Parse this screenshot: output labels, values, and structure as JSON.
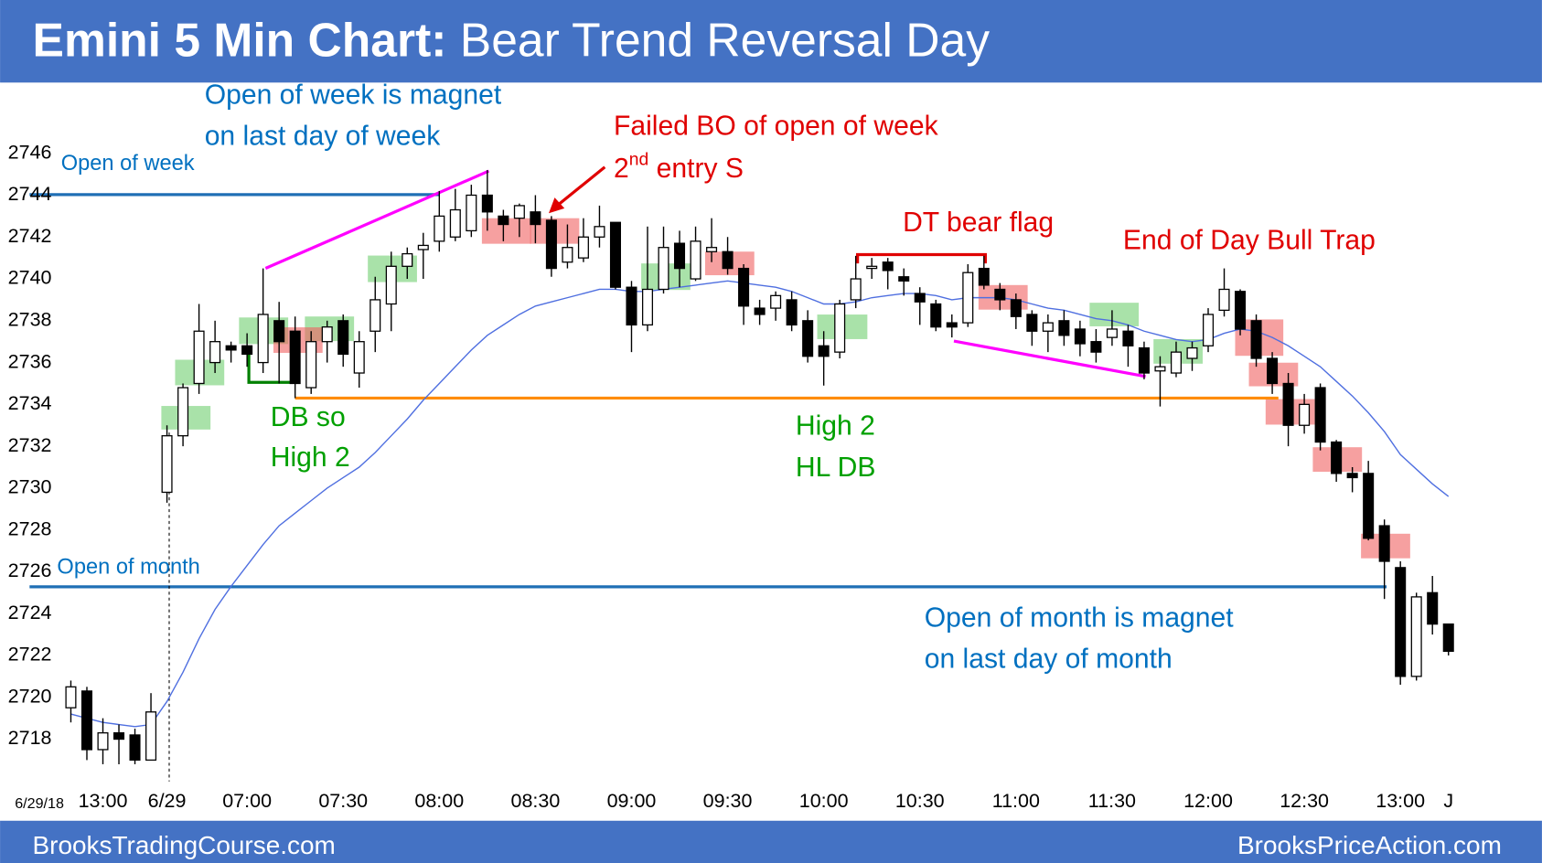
{
  "chart_data": {
    "type": "candlestick",
    "title": {
      "bold": "Emini 5 Min Chart:",
      "rest": " Bear Trend Reversal Day"
    },
    "date_label": "6/29/18",
    "categories": [
      null,
      null,
      "13:00",
      null,
      null,
      null,
      "6/29",
      null,
      null,
      null,
      null,
      "07:00",
      null,
      null,
      null,
      null,
      null,
      "07:30",
      null,
      null,
      null,
      null,
      null,
      "08:00",
      null,
      null,
      null,
      null,
      null,
      "08:30",
      null,
      null,
      null,
      null,
      null,
      "09:00",
      null,
      null,
      null,
      null,
      null,
      "09:30",
      null,
      null,
      null,
      null,
      null,
      "10:00",
      null,
      null,
      null,
      null,
      null,
      "10:30",
      null,
      null,
      null,
      null,
      null,
      "11:00",
      null,
      null,
      null,
      null,
      null,
      "11:30",
      null,
      null,
      null,
      null,
      null,
      "12:00",
      null,
      null,
      null,
      null,
      null,
      "12:30",
      null,
      null,
      null,
      null,
      null,
      "13:00",
      null,
      null,
      "J"
    ],
    "open": [
      2719.5,
      2720.3,
      2717.5,
      2718.3,
      2718.2,
      2717,
      2729.8,
      2732.5,
      2735,
      2736,
      2736.8,
      2736.8,
      2736,
      2738,
      2737.5,
      2734.8,
      2737,
      2738,
      2735.5,
      2737.5,
      2738.8,
      2740.6,
      2741.4,
      2741.8,
      2742,
      2742.3,
      2744,
      2743,
      2742.9,
      2743.2,
      2742.8,
      2740.8,
      2741,
      2742,
      2742.7,
      2739.6,
      2737.8,
      2739.5,
      2741.7,
      2740,
      2741.3,
      2741.3,
      2740.5,
      2738.6,
      2738.6,
      2739,
      2738,
      2736.8,
      2736.5,
      2739,
      2740.5,
      2740.8,
      2740.1,
      2739.3,
      2738.8,
      2737.9,
      2737.9,
      2740.5,
      2739.5,
      2739,
      2738.3,
      2737.5,
      2738,
      2737.6,
      2737,
      2737.2,
      2737.5,
      2736.7,
      2735.6,
      2735.5,
      2736.2,
      2736.8,
      2738.5,
      2739.4,
      2738,
      2736.2,
      2735,
      2733,
      2734.8,
      2732.2,
      2730.7,
      2730.7,
      2728.2,
      2726.2,
      2721,
      2725,
      2723.5
    ],
    "high": [
      2720.8,
      2720.5,
      2719,
      2718.7,
      2718.5,
      2720.2,
      2733,
      2735,
      2738.8,
      2738,
      2737,
      2737.4,
      2740.5,
      2738.9,
      2738.2,
      2737.5,
      2738,
      2738.3,
      2737.5,
      2740.1,
      2741.3,
      2741.5,
      2742.2,
      2744.2,
      2744.3,
      2744.5,
      2745.2,
      2743.3,
      2743.6,
      2744,
      2743,
      2742.6,
      2742.9,
      2743.5,
      2742.7,
      2739.9,
      2742.5,
      2742.5,
      2742.3,
      2742.5,
      2742.9,
      2742,
      2740.7,
      2739,
      2739.4,
      2739.4,
      2738.5,
      2737.5,
      2739,
      2741.1,
      2741,
      2741,
      2740.5,
      2739.6,
      2739,
      2738.3,
      2740.7,
      2741.1,
      2739.8,
      2739.3,
      2738.5,
      2738.3,
      2738.5,
      2738,
      2737.6,
      2738.5,
      2737.8,
      2737,
      2736.3,
      2737,
      2737,
      2738.6,
      2740.5,
      2739.5,
      2738.3,
      2736.5,
      2735.5,
      2734.5,
      2735,
      2732.3,
      2731,
      2731.3,
      2728.5,
      2726.5,
      2725,
      2725.8,
      2723.5
    ],
    "low": [
      2718.8,
      2717,
      2716.8,
      2716.8,
      2716.8,
      2717,
      2729.3,
      2732,
      2734.5,
      2735.5,
      2736,
      2735.8,
      2735.5,
      2735,
      2734.3,
      2734.5,
      2736,
      2735.8,
      2734.8,
      2736.5,
      2737.5,
      2740,
      2740,
      2741.3,
      2741.8,
      2742,
      2742.3,
      2741.8,
      2742,
      2741.7,
      2740.1,
      2740.5,
      2740.8,
      2741.5,
      2739.5,
      2736.5,
      2737.5,
      2739.3,
      2739.6,
      2739.9,
      2740.8,
      2740.2,
      2737.8,
      2737.8,
      2738,
      2737.5,
      2736,
      2734.9,
      2736.2,
      2738.6,
      2740,
      2739.5,
      2739.2,
      2737.8,
      2737.5,
      2737.2,
      2737.7,
      2739.5,
      2738.5,
      2737.6,
      2736.8,
      2736.5,
      2736.8,
      2736.3,
      2736,
      2736.8,
      2735.8,
      2735.2,
      2733.9,
      2735.3,
      2735.6,
      2736.5,
      2738.2,
      2737.3,
      2735.8,
      2734.5,
      2732,
      2732.6,
      2731.8,
      2730.3,
      2729.8,
      2727.5,
      2724.7,
      2720.6,
      2720.8,
      2723,
      2722
    ],
    "close": [
      2720.5,
      2717.5,
      2718.3,
      2718,
      2717,
      2719.3,
      2732.5,
      2734.8,
      2737.5,
      2737,
      2736.6,
      2736.4,
      2738.3,
      2737,
      2735,
      2737,
      2737.7,
      2736.4,
      2737,
      2739,
      2740.6,
      2741.2,
      2741.6,
      2743,
      2743.3,
      2744,
      2743.2,
      2742.6,
      2743.5,
      2742.6,
      2740.5,
      2741.5,
      2742,
      2742.5,
      2739.6,
      2737.8,
      2739.5,
      2741.5,
      2740.5,
      2741.8,
      2741.5,
      2740.5,
      2738.7,
      2738.3,
      2739.2,
      2737.8,
      2736.3,
      2736.3,
      2738.8,
      2740,
      2740.6,
      2740.4,
      2739.9,
      2738.9,
      2737.7,
      2737.7,
      2740.3,
      2739.7,
      2739,
      2738.2,
      2737.5,
      2737.9,
      2737.3,
      2736.9,
      2736.5,
      2737.6,
      2736.8,
      2735.5,
      2735.8,
      2736.5,
      2736.7,
      2738.3,
      2739.5,
      2737.6,
      2736.2,
      2735,
      2733,
      2734,
      2732.2,
      2730.7,
      2730.5,
      2727.6,
      2726.5,
      2721,
      2724.8,
      2723.5,
      2722.2
    ],
    "up_color": "#ffffff",
    "down_color": "#000000",
    "ma": {
      "color": "#4f6fe0",
      "values": [
        2719.2,
        2719,
        2718.8,
        2718.7,
        2718.6,
        2718.7,
        2719.8,
        2721.2,
        2722.8,
        2724.2,
        2725.3,
        2726.3,
        2727.3,
        2728.2,
        2728.8,
        2729.4,
        2730,
        2730.5,
        2731,
        2731.7,
        2732.5,
        2733.3,
        2734.2,
        2735,
        2735.8,
        2736.6,
        2737.3,
        2737.8,
        2738.3,
        2738.7,
        2738.9,
        2739.1,
        2739.3,
        2739.5,
        2739.5,
        2739.4,
        2739.4,
        2739.5,
        2739.6,
        2739.7,
        2739.8,
        2739.9,
        2739.8,
        2739.7,
        2739.6,
        2739.4,
        2739.1,
        2738.8,
        2738.8,
        2738.9,
        2739.1,
        2739.2,
        2739.3,
        2739.3,
        2739.2,
        2739,
        2739.1,
        2739.1,
        2739.1,
        2739,
        2738.8,
        2738.6,
        2738.5,
        2738.3,
        2738.1,
        2738,
        2737.8,
        2737.5,
        2737.3,
        2737.1,
        2737,
        2737.1,
        2737.4,
        2737.6,
        2737.5,
        2737.2,
        2736.8,
        2736.3,
        2735.8,
        2735.1,
        2734.4,
        2733.6,
        2732.7,
        2731.6,
        2730.9,
        2730.2,
        2729.6
      ]
    },
    "ylim": [
      2716,
      2749
    ],
    "yticks": [
      2718,
      2720,
      2722,
      2724,
      2726,
      2728,
      2730,
      2732,
      2734,
      2736,
      2738,
      2740,
      2742,
      2744,
      2746
    ],
    "grid": false,
    "annotations": {
      "open_week_label": "Open of week",
      "open_month_label": "Open of month",
      "week_magnet": [
        "Open of week is magnet",
        "on last day of week"
      ],
      "failed_bo": "Failed BO of open of week",
      "second_entry": {
        "num": "2",
        "sup": "nd",
        "rest": " entry S"
      },
      "dt_bear_flag": "DT bear flag",
      "bull_trap": "End of Day Bull Trap",
      "db_high2": [
        "DB so",
        "High 2"
      ],
      "high2_hl_db": [
        "High 2",
        "HL DB"
      ],
      "month_magnet": [
        "Open of month is magnet",
        "on last day of month"
      ]
    },
    "footer_left": "BrooksTradingCourse.com",
    "footer_right": "BrooksPriceAction.com"
  }
}
